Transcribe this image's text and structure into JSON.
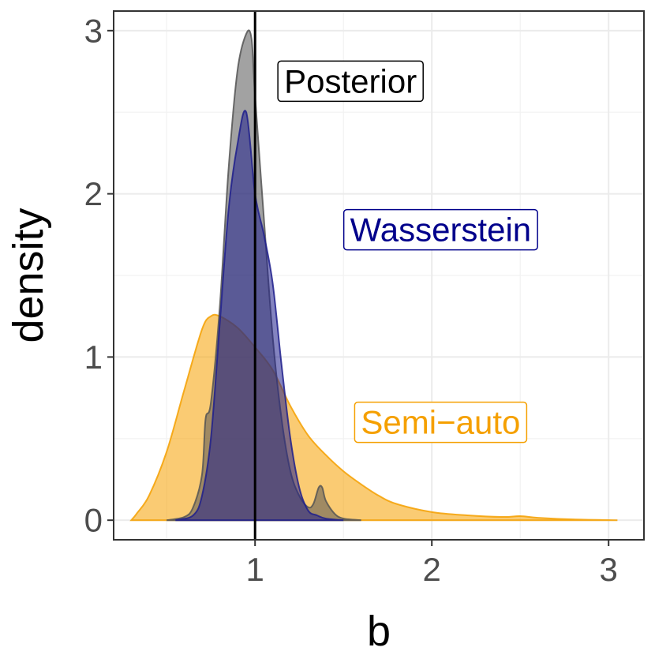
{
  "chart_data": {
    "type": "area",
    "title": "",
    "xlabel": "b",
    "ylabel": "density",
    "xlim": [
      0.2,
      3.2
    ],
    "ylim": [
      -0.12,
      3.12
    ],
    "x_ticks": [
      1,
      2,
      3
    ],
    "y_ticks": [
      0,
      1,
      2,
      3
    ],
    "x_tick_labels": [
      "1",
      "2",
      "3"
    ],
    "y_tick_labels": [
      "0",
      "1",
      "2",
      "3"
    ],
    "grid": true,
    "reference_line": {
      "x": 1,
      "color": "#000000"
    },
    "series": [
      {
        "name": "Semi−auto",
        "color": "#F5A000",
        "x": [
          0.3,
          0.33,
          0.4,
          0.5,
          0.6,
          0.7,
          0.75,
          0.8,
          0.9,
          1.0,
          1.1,
          1.2,
          1.3,
          1.4,
          1.5,
          1.6,
          1.7,
          1.8,
          2.0,
          2.2,
          2.4,
          2.5,
          2.6,
          2.8,
          3.05
        ],
        "values": [
          0.0,
          0.04,
          0.15,
          0.42,
          0.8,
          1.17,
          1.25,
          1.25,
          1.18,
          1.06,
          0.92,
          0.7,
          0.52,
          0.4,
          0.3,
          0.22,
          0.15,
          0.1,
          0.05,
          0.03,
          0.02,
          0.025,
          0.015,
          0.005,
          0.0
        ]
      },
      {
        "name": "Posterior",
        "color": "#555555",
        "x": [
          0.5,
          0.6,
          0.65,
          0.7,
          0.72,
          0.75,
          0.8,
          0.85,
          0.9,
          0.95,
          0.98,
          1.0,
          1.05,
          1.1,
          1.15,
          1.2,
          1.25,
          1.3,
          1.33,
          1.36,
          1.38,
          1.4,
          1.45,
          1.5,
          1.6
        ],
        "values": [
          0.0,
          0.02,
          0.08,
          0.28,
          0.62,
          0.72,
          1.3,
          2.15,
          2.75,
          2.98,
          2.95,
          2.6,
          1.85,
          1.12,
          0.62,
          0.3,
          0.15,
          0.08,
          0.1,
          0.2,
          0.2,
          0.12,
          0.04,
          0.01,
          0.0
        ]
      },
      {
        "name": "Wasserstein",
        "color": "#1F1F8C",
        "x": [
          0.55,
          0.65,
          0.7,
          0.75,
          0.8,
          0.85,
          0.9,
          0.95,
          1.0,
          1.05,
          1.1,
          1.15,
          1.2,
          1.25,
          1.3,
          1.35,
          1.4,
          1.5
        ],
        "values": [
          0.0,
          0.03,
          0.15,
          0.5,
          1.2,
          1.9,
          2.3,
          2.5,
          2.0,
          1.75,
          1.45,
          0.95,
          0.5,
          0.2,
          0.06,
          0.03,
          0.01,
          0.0
        ]
      }
    ],
    "annotations": [
      {
        "text": "Posterior",
        "x": 1.54,
        "y": 2.69,
        "color": "#000000"
      },
      {
        "text": "Wasserstein",
        "x": 2.05,
        "y": 1.78,
        "color": "#00008B"
      },
      {
        "text": "Semi−auto",
        "x": 2.05,
        "y": 0.6,
        "color": "#F5A000"
      }
    ]
  }
}
